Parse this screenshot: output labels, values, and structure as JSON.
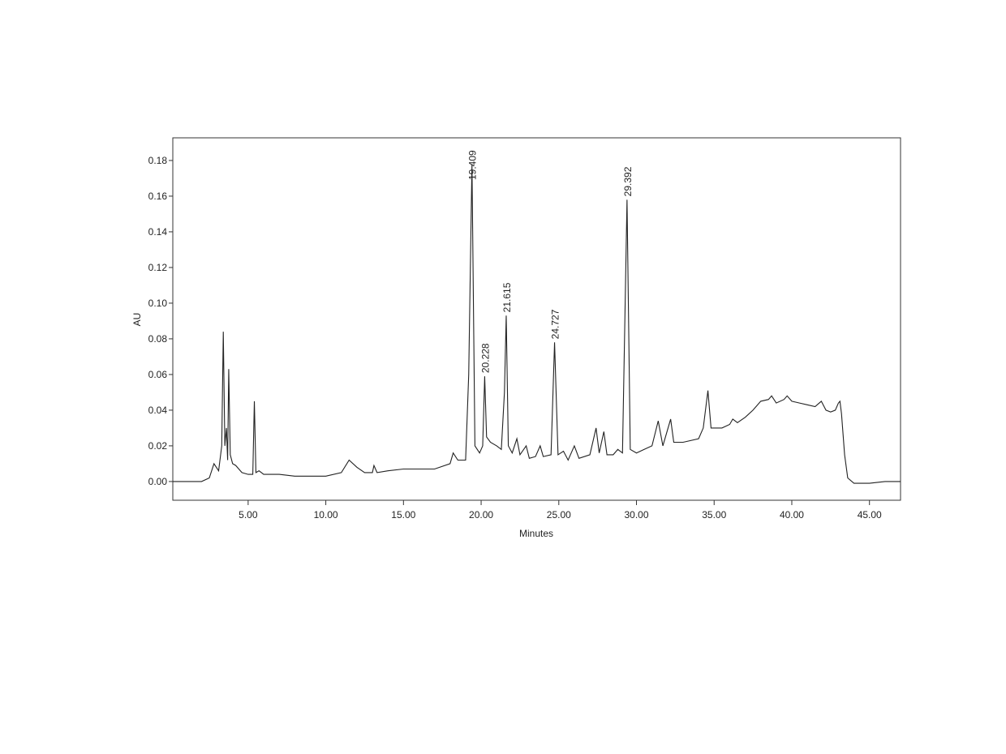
{
  "chart_data": {
    "type": "line",
    "x_label": "Minutes",
    "y_label": "AU",
    "xlim": [
      0.15,
      47.0
    ],
    "ylim": [
      -0.0105,
      0.1927
    ],
    "xticks": [
      {
        "value": 5,
        "label": "5.00"
      },
      {
        "value": 10,
        "label": "10.00"
      },
      {
        "value": 15,
        "label": "15.00"
      },
      {
        "value": 20,
        "label": "20.00"
      },
      {
        "value": 25,
        "label": "25.00"
      },
      {
        "value": 30,
        "label": "30.00"
      },
      {
        "value": 35,
        "label": "35.00"
      },
      {
        "value": 40,
        "label": "40.00"
      },
      {
        "value": 45,
        "label": "45.00"
      }
    ],
    "yticks": [
      {
        "value": 0,
        "label": "0.00"
      },
      {
        "value": 0.02,
        "label": "0.02"
      },
      {
        "value": 0.04,
        "label": "0.04"
      },
      {
        "value": 0.06,
        "label": "0.06"
      },
      {
        "value": 0.08,
        "label": "0.08"
      },
      {
        "value": 0.1,
        "label": "0.10"
      },
      {
        "value": 0.12,
        "label": "0.12"
      },
      {
        "value": 0.14,
        "label": "0.14"
      },
      {
        "value": 0.16,
        "label": "0.16"
      },
      {
        "value": 0.18,
        "label": "0.18"
      }
    ],
    "color": "#222222",
    "x": [
      0.15,
      1,
      2,
      2.5,
      2.8,
      3.1,
      3.3,
      3.4,
      3.5,
      3.6,
      3.68,
      3.75,
      3.85,
      4.0,
      4.2,
      4.6,
      5.0,
      5.3,
      5.4,
      5.5,
      5.7,
      6.0,
      7.0,
      8.0,
      10.0,
      11.0,
      11.5,
      12.0,
      12.5,
      13.0,
      13.1,
      13.3,
      14.0,
      15.0,
      16.0,
      17.0,
      18.0,
      18.2,
      18.5,
      19.0,
      19.2,
      19.409,
      19.6,
      19.9,
      20.1,
      20.228,
      20.35,
      20.6,
      21.0,
      21.3,
      21.5,
      21.615,
      21.75,
      22.0,
      22.3,
      22.5,
      22.9,
      23.1,
      23.5,
      23.8,
      24.0,
      24.5,
      24.727,
      24.95,
      25.3,
      25.6,
      26.0,
      26.3,
      27.0,
      27.4,
      27.6,
      27.9,
      28.1,
      28.5,
      28.8,
      29.1,
      29.392,
      29.6,
      30.0,
      30.5,
      31.0,
      31.4,
      31.7,
      32.2,
      32.4,
      33.0,
      34.0,
      34.3,
      34.6,
      34.8,
      35.5,
      36.0,
      36.2,
      36.5,
      37.0,
      37.5,
      38.0,
      38.5,
      38.7,
      39.0,
      39.5,
      39.7,
      40.0,
      40.5,
      41.0,
      41.5,
      41.9,
      42.2,
      42.5,
      42.8,
      43.0,
      43.1,
      43.2,
      43.4,
      43.6,
      44.0,
      45.0,
      46.0,
      47.0
    ],
    "values": [
      0.0,
      0.0,
      0.0,
      0.002,
      0.01,
      0.006,
      0.02,
      0.084,
      0.02,
      0.03,
      0.012,
      0.063,
      0.015,
      0.01,
      0.009,
      0.005,
      0.004,
      0.004,
      0.045,
      0.005,
      0.006,
      0.004,
      0.004,
      0.003,
      0.003,
      0.005,
      0.012,
      0.008,
      0.005,
      0.005,
      0.009,
      0.005,
      0.006,
      0.007,
      0.007,
      0.007,
      0.01,
      0.016,
      0.012,
      0.012,
      0.06,
      0.178,
      0.02,
      0.016,
      0.02,
      0.059,
      0.025,
      0.022,
      0.02,
      0.018,
      0.05,
      0.093,
      0.02,
      0.016,
      0.024,
      0.015,
      0.02,
      0.013,
      0.014,
      0.02,
      0.014,
      0.015,
      0.078,
      0.015,
      0.017,
      0.012,
      0.02,
      0.013,
      0.015,
      0.03,
      0.016,
      0.028,
      0.015,
      0.015,
      0.018,
      0.016,
      0.158,
      0.018,
      0.016,
      0.018,
      0.02,
      0.034,
      0.02,
      0.035,
      0.022,
      0.022,
      0.024,
      0.03,
      0.051,
      0.03,
      0.03,
      0.032,
      0.035,
      0.033,
      0.036,
      0.04,
      0.045,
      0.046,
      0.048,
      0.044,
      0.046,
      0.048,
      0.045,
      0.044,
      0.043,
      0.042,
      0.045,
      0.04,
      0.039,
      0.04,
      0.044,
      0.045,
      0.038,
      0.015,
      0.002,
      -0.001,
      -0.001,
      0.0,
      0.0
    ],
    "annotations": [
      {
        "text": "19.409",
        "x": 19.409
      },
      {
        "text": "20.228",
        "x": 20.228
      },
      {
        "text": "21.615",
        "x": 21.615
      },
      {
        "text": "24.727",
        "x": 24.727
      },
      {
        "text": "29.392",
        "x": 29.392
      }
    ]
  }
}
